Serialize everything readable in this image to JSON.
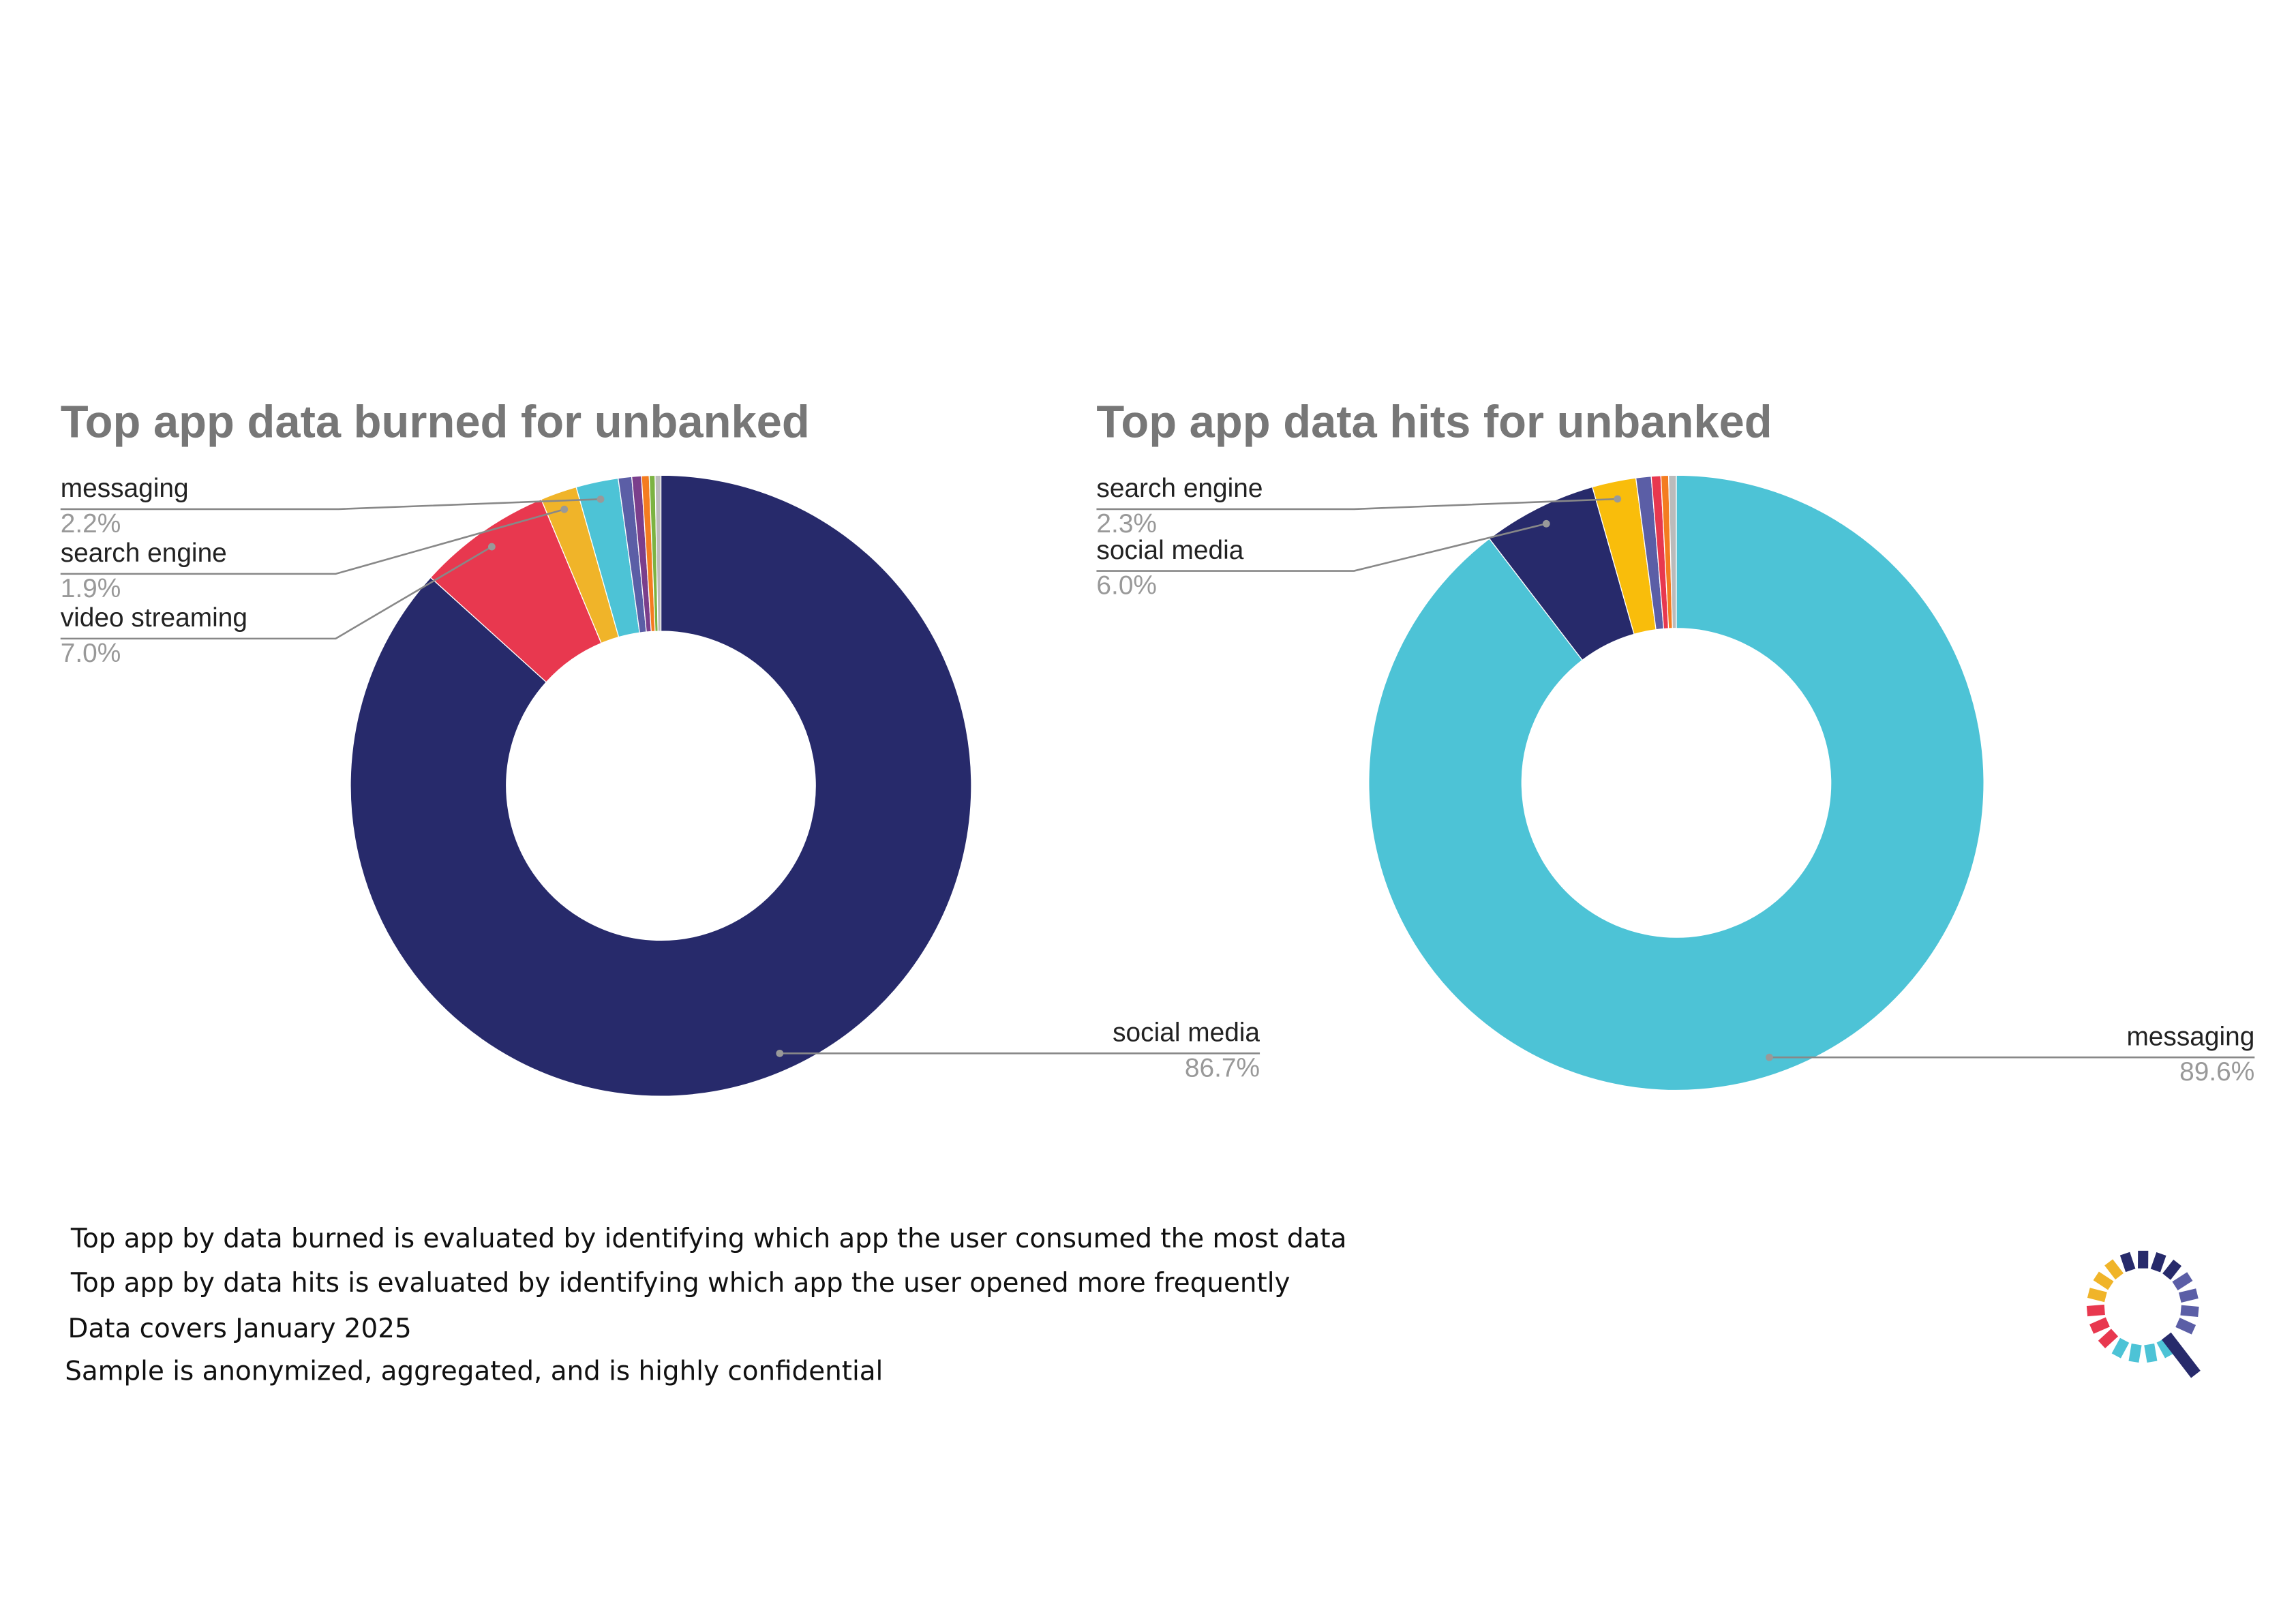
{
  "chart_data": [
    {
      "type": "donut",
      "title": "Top app data burned for unbanked",
      "categories": [
        "social media",
        "video streaming",
        "search engine",
        "messaging",
        null,
        null,
        null,
        null,
        null
      ],
      "values": [
        86.7,
        7.0,
        1.9,
        2.2,
        0.7,
        0.5,
        0.4,
        0.3,
        0.3
      ],
      "value_labels": [
        "86.7%",
        "7.0%",
        "1.9%",
        "2.2%",
        null,
        null,
        null,
        null,
        null
      ],
      "colors": [
        "#272a6b",
        "#e8384f",
        "#f0b429",
        "#4dc3d6",
        "#5b5ea6",
        "#7b3f8c",
        "#f47c20",
        "#7cb342",
        "#bbbbbb"
      ]
    },
    {
      "type": "donut",
      "title": "Top app data hits for unbanked",
      "categories": [
        "messaging",
        "social media",
        "search engine",
        null,
        null,
        null,
        null
      ],
      "values": [
        89.6,
        6.0,
        2.3,
        0.8,
        0.5,
        0.4,
        0.4
      ],
      "value_labels": [
        "89.6%",
        "6.0%",
        "2.3%",
        null,
        null,
        null,
        null
      ],
      "colors": [
        "#4dc3d6",
        "#272a6b",
        "#f9bd0b",
        "#5b5ea6",
        "#e8384f",
        "#f47c20",
        "#bbbbbb"
      ]
    }
  ],
  "footer": [
    "Top app by data burned is evaluated by identifying which app the user consumed the most data",
    "Top app by data hits is evaluated by identifying which app the user opened more frequently",
    "Data covers January 2025",
    "Sample is anonymized, aggregated, and is highly confidential"
  ]
}
